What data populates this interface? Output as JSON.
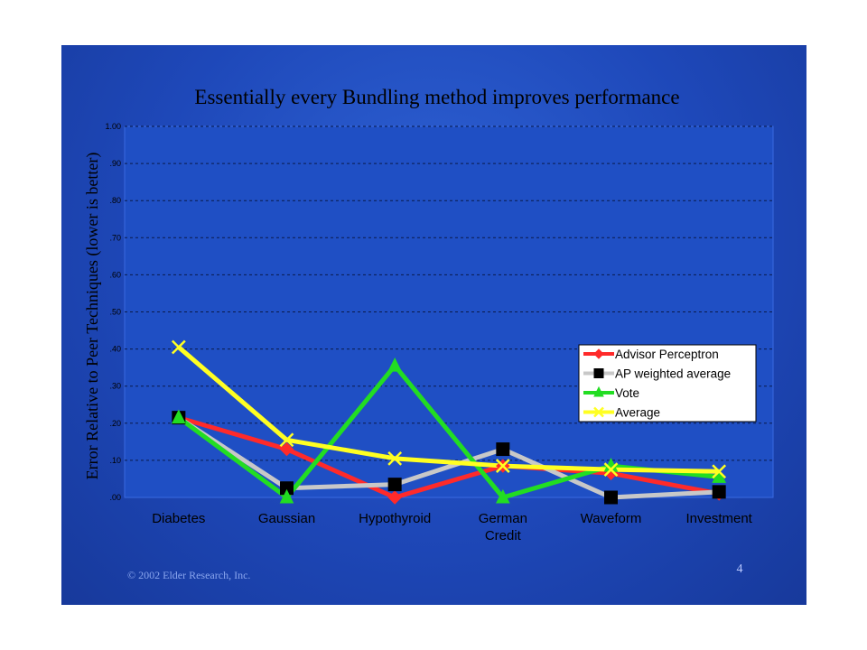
{
  "slide": {
    "copyright": "© 2002 Elder Research, Inc.",
    "page_number": "4"
  },
  "colors": {
    "background": "#1f4fc4",
    "grid": "#0a1a4a",
    "advisor_perceptron": "#ff2a2a",
    "ap_weighted_average": "#c8c8c8",
    "vote": "#22dd22",
    "average": "#ffff22"
  },
  "chart_data": {
    "type": "line",
    "title": "Essentially every Bundling method improves performance",
    "xlabel": "",
    "ylabel": "Error Relative to Peer Techniques (lower is better)",
    "ylim": [
      0,
      1
    ],
    "yticks": [
      ".00",
      ".10",
      ".20",
      ".30",
      ".40",
      ".50",
      ".60",
      ".70",
      ".80",
      ".90",
      "1.00"
    ],
    "grid": true,
    "legend_position": "right-middle",
    "categories": [
      "Diabetes",
      "Gaussian",
      "Hypothyroid",
      "German Credit",
      "Waveform",
      "Investment"
    ],
    "category_lines": [
      [
        "Diabetes"
      ],
      [
        "Gaussian"
      ],
      [
        "Hypothyroid"
      ],
      [
        "German",
        "Credit"
      ],
      [
        "Waveform"
      ],
      [
        "Investment"
      ]
    ],
    "series": [
      {
        "name": "Advisor Perceptron",
        "values": [
          0.215,
          0.13,
          0.0,
          0.085,
          0.065,
          0.01
        ],
        "color": "#ff2a2a",
        "marker": "diamond"
      },
      {
        "name": "AP weighted average",
        "values": [
          0.215,
          0.025,
          0.035,
          0.13,
          0.0,
          0.015
        ],
        "color": "#c8c8c8",
        "marker": "square"
      },
      {
        "name": "Vote",
        "values": [
          0.215,
          0.0,
          0.355,
          0.0,
          0.085,
          0.055
        ],
        "color": "#22dd22",
        "marker": "triangle"
      },
      {
        "name": "Average",
        "values": [
          0.405,
          0.155,
          0.105,
          0.085,
          0.075,
          0.07
        ],
        "color": "#ffff22",
        "marker": "x"
      }
    ]
  }
}
